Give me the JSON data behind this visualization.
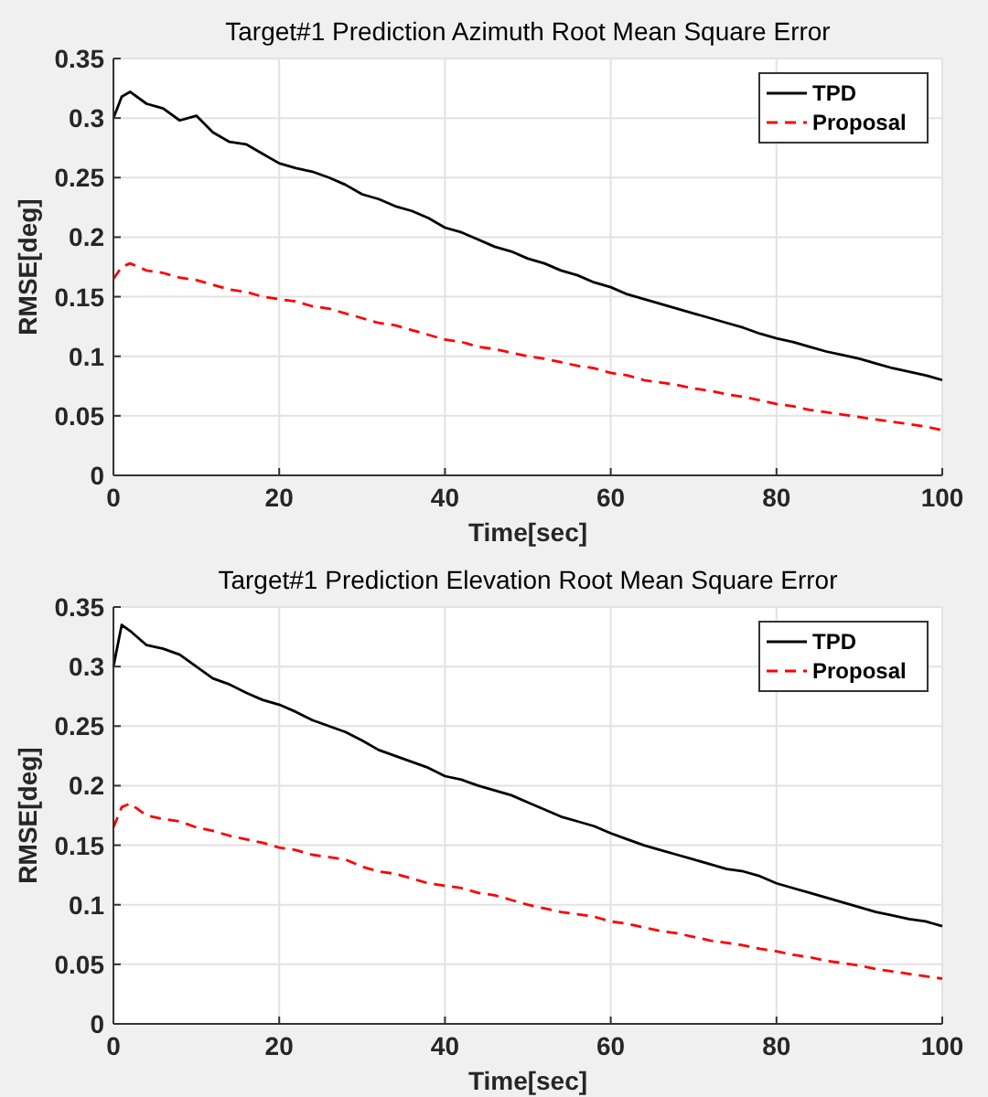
{
  "chart_data": [
    {
      "type": "line",
      "title": "Target#1 Prediction Azimuth Root Mean Square Error",
      "xlabel": "Time[sec]",
      "ylabel": "RMSE[deg]",
      "x": [
        0,
        1,
        2,
        4,
        6,
        8,
        10,
        12,
        14,
        16,
        18,
        20,
        22,
        24,
        26,
        28,
        30,
        32,
        34,
        36,
        38,
        40,
        42,
        44,
        46,
        48,
        50,
        52,
        54,
        56,
        58,
        60,
        62,
        64,
        66,
        68,
        70,
        72,
        74,
        76,
        78,
        80,
        82,
        84,
        86,
        88,
        90,
        92,
        94,
        96,
        98,
        100
      ],
      "xlim": [
        0,
        100
      ],
      "xticks": [
        0,
        20,
        40,
        60,
        80,
        100
      ],
      "ylim": [
        0,
        0.35
      ],
      "yticks": [
        0,
        0.05,
        0.1,
        0.15,
        0.2,
        0.25,
        0.3,
        0.35
      ],
      "grid": true,
      "legend": "top right",
      "series": [
        {
          "name": "TPD",
          "color": "#000000",
          "line_style": "solid",
          "values": [
            0.3,
            0.318,
            0.322,
            0.312,
            0.308,
            0.298,
            0.302,
            0.288,
            0.28,
            0.278,
            0.27,
            0.262,
            0.258,
            0.255,
            0.25,
            0.244,
            0.236,
            0.232,
            0.226,
            0.222,
            0.216,
            0.208,
            0.204,
            0.198,
            0.192,
            0.188,
            0.182,
            0.178,
            0.172,
            0.168,
            0.162,
            0.158,
            0.152,
            0.148,
            0.144,
            0.14,
            0.136,
            0.132,
            0.128,
            0.124,
            0.119,
            0.115,
            0.112,
            0.108,
            0.104,
            0.101,
            0.098,
            0.094,
            0.09,
            0.087,
            0.084,
            0.08
          ]
        },
        {
          "name": "Proposal",
          "color": "#ff0000",
          "line_style": "dashed",
          "values": [
            0.165,
            0.175,
            0.178,
            0.172,
            0.17,
            0.166,
            0.164,
            0.16,
            0.156,
            0.154,
            0.15,
            0.148,
            0.146,
            0.142,
            0.14,
            0.136,
            0.132,
            0.128,
            0.126,
            0.122,
            0.118,
            0.114,
            0.112,
            0.108,
            0.106,
            0.103,
            0.1,
            0.098,
            0.095,
            0.092,
            0.09,
            0.086,
            0.084,
            0.08,
            0.078,
            0.076,
            0.073,
            0.071,
            0.068,
            0.066,
            0.063,
            0.06,
            0.058,
            0.055,
            0.053,
            0.051,
            0.049,
            0.047,
            0.045,
            0.043,
            0.041,
            0.038
          ]
        }
      ]
    },
    {
      "type": "line",
      "title": "Target#1 Prediction Elevation Root Mean Square Error",
      "xlabel": "Time[sec]",
      "ylabel": "RMSE[deg]",
      "x": [
        0,
        1,
        2,
        4,
        6,
        8,
        10,
        12,
        14,
        16,
        18,
        20,
        22,
        24,
        26,
        28,
        30,
        32,
        34,
        36,
        38,
        40,
        42,
        44,
        46,
        48,
        50,
        52,
        54,
        56,
        58,
        60,
        62,
        64,
        66,
        68,
        70,
        72,
        74,
        76,
        78,
        80,
        82,
        84,
        86,
        88,
        90,
        92,
        94,
        96,
        98,
        100
      ],
      "xlim": [
        0,
        100
      ],
      "xticks": [
        0,
        20,
        40,
        60,
        80,
        100
      ],
      "ylim": [
        0,
        0.35
      ],
      "yticks": [
        0,
        0.05,
        0.1,
        0.15,
        0.2,
        0.25,
        0.3,
        0.35
      ],
      "grid": true,
      "legend": "top right",
      "series": [
        {
          "name": "TPD",
          "color": "#000000",
          "line_style": "solid",
          "values": [
            0.3,
            0.335,
            0.33,
            0.318,
            0.315,
            0.31,
            0.3,
            0.29,
            0.285,
            0.278,
            0.272,
            0.268,
            0.262,
            0.255,
            0.25,
            0.245,
            0.238,
            0.23,
            0.225,
            0.22,
            0.215,
            0.208,
            0.205,
            0.2,
            0.196,
            0.192,
            0.186,
            0.18,
            0.174,
            0.17,
            0.166,
            0.16,
            0.155,
            0.15,
            0.146,
            0.142,
            0.138,
            0.134,
            0.13,
            0.128,
            0.124,
            0.118,
            0.114,
            0.11,
            0.106,
            0.102,
            0.098,
            0.094,
            0.091,
            0.088,
            0.086,
            0.082
          ]
        },
        {
          "name": "Proposal",
          "color": "#ff0000",
          "line_style": "dashed",
          "values": [
            0.165,
            0.182,
            0.185,
            0.175,
            0.172,
            0.17,
            0.165,
            0.162,
            0.158,
            0.155,
            0.152,
            0.148,
            0.146,
            0.142,
            0.14,
            0.138,
            0.132,
            0.128,
            0.126,
            0.122,
            0.118,
            0.116,
            0.114,
            0.11,
            0.108,
            0.104,
            0.1,
            0.097,
            0.094,
            0.092,
            0.09,
            0.086,
            0.084,
            0.081,
            0.078,
            0.076,
            0.073,
            0.07,
            0.068,
            0.066,
            0.063,
            0.061,
            0.058,
            0.056,
            0.053,
            0.051,
            0.049,
            0.046,
            0.044,
            0.042,
            0.04,
            0.038
          ]
        }
      ]
    }
  ]
}
